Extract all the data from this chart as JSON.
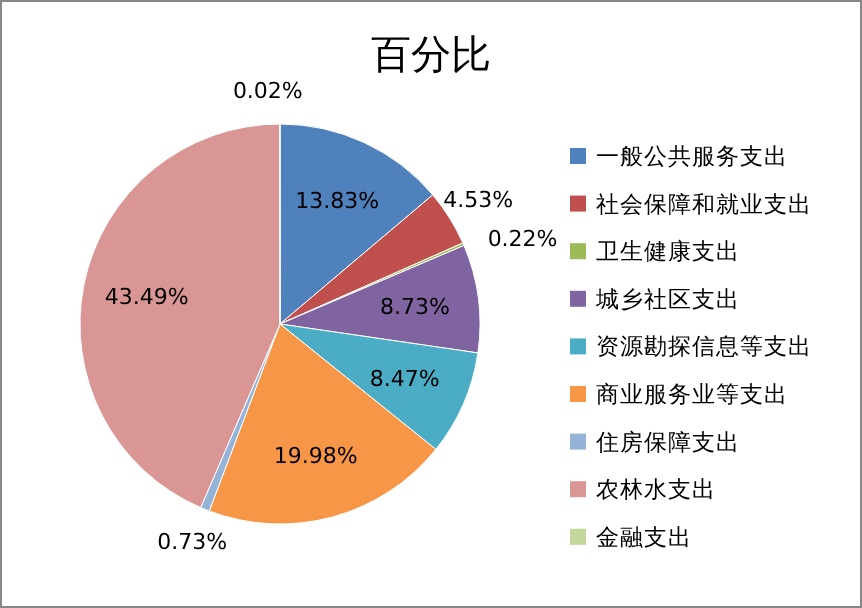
{
  "chart_data": {
    "type": "pie",
    "title": "百分比",
    "categories": [
      "一般公共服务支出",
      "社会保障和就业支出",
      "卫生健康支出",
      "城乡社区支出",
      "资源勘探信息等支出",
      "商业服务业等支出",
      "住房保障支出",
      "农林水支出",
      "金融支出"
    ],
    "values": [
      13.83,
      4.53,
      0.22,
      8.73,
      8.47,
      19.98,
      0.73,
      43.49,
      0.02
    ],
    "value_labels": [
      "13.83%",
      "4.53%",
      "0.22%",
      "8.73%",
      "8.47%",
      "19.98%",
      "0.73%",
      "43.49%",
      "0.02%"
    ],
    "colors": [
      "#4f81bd",
      "#c0504d",
      "#9bbb59",
      "#8064a2",
      "#4bacc6",
      "#f79646",
      "#95b3d7",
      "#d99694",
      "#c3d69b"
    ],
    "legend": "right"
  }
}
